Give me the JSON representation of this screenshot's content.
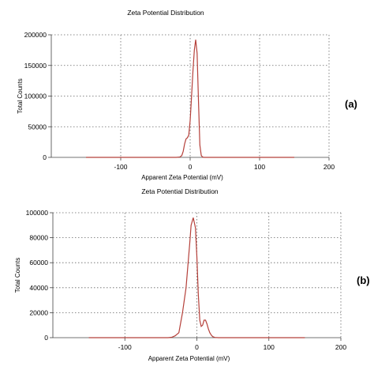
{
  "chart_data": [
    {
      "type": "line",
      "tag": "(a)",
      "title": "Zeta Potential Distribution",
      "xlabel": "Apparent Zeta Potential (mV)",
      "ylabel": "Total Counts",
      "xlim": [
        -200,
        200
      ],
      "ylim": [
        0,
        200000
      ],
      "xticks": [
        -100,
        0,
        100,
        200
      ],
      "yticks": [
        0,
        50000,
        100000,
        150000,
        200000
      ],
      "grid": true,
      "series": [
        {
          "color": "#b5403a",
          "x": [
            -150,
            -20,
            -15,
            -12,
            -10,
            -8,
            -6,
            -4,
            -2,
            0,
            2,
            4,
            6,
            8,
            10,
            12,
            14,
            16,
            18,
            20,
            50,
            100,
            150
          ],
          "y": [
            0,
            0,
            500,
            3000,
            10000,
            22000,
            30000,
            32000,
            36000,
            60000,
            100000,
            140000,
            175000,
            192000,
            170000,
            90000,
            20000,
            3000,
            500,
            0,
            0,
            0,
            0
          ]
        }
      ]
    },
    {
      "type": "line",
      "tag": "(b)",
      "title": "Zeta Potential Distribution",
      "xlabel": "Apparent Zeta Potential (mV)",
      "ylabel": "Total Counts",
      "xlim": [
        -200,
        200
      ],
      "ylim": [
        0,
        100000
      ],
      "xticks": [
        -100,
        0,
        100,
        200
      ],
      "yticks": [
        0,
        20000,
        40000,
        60000,
        80000,
        100000
      ],
      "grid": true,
      "series": [
        {
          "color": "#b5403a",
          "x": [
            -150,
            -40,
            -35,
            -30,
            -25,
            -20,
            -15,
            -10,
            -8,
            -5,
            -2,
            0,
            2,
            4,
            6,
            8,
            10,
            12,
            14,
            16,
            18,
            20,
            22,
            25,
            30,
            60,
            100,
            150
          ],
          "y": [
            0,
            0,
            300,
            1500,
            4000,
            20000,
            40000,
            75000,
            90000,
            96000,
            88000,
            65000,
            35000,
            14000,
            9000,
            10000,
            14000,
            14000,
            11000,
            7000,
            4000,
            2000,
            800,
            200,
            0,
            0,
            0,
            0
          ]
        }
      ]
    }
  ]
}
